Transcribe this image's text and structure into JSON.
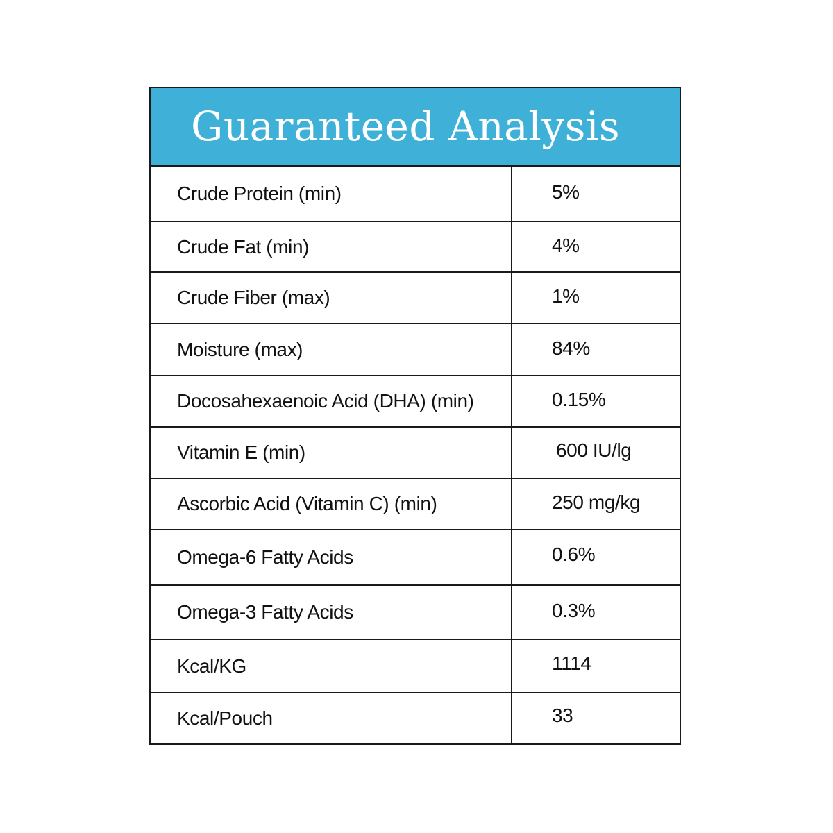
{
  "header": {
    "title": "Guaranteed Analysis",
    "background_color": "#3fb0d8",
    "text_color": "#ffffff"
  },
  "table": {
    "rows": [
      {
        "name": "Crude Protein (min)",
        "value": "5%"
      },
      {
        "name": "Crude Fat (min)",
        "value": "4%"
      },
      {
        "name": "Crude Fiber (max)",
        "value": "1%"
      },
      {
        "name": "Moisture (max)",
        "value": "84%"
      },
      {
        "name": "Docosahexaenoic Acid (DHA) (min)",
        "value": "0.15%"
      },
      {
        "name": "Vitamin E (min)",
        "value": "600 IU/lg"
      },
      {
        "name": "Ascorbic Acid (Vitamin C) (min)",
        "value": "250 mg/kg"
      },
      {
        "name": "Omega-6 Fatty Acids",
        "value": "0.6%"
      },
      {
        "name": "Omega-3 Fatty Acids",
        "value": "0.3%"
      },
      {
        "name": "Kcal/KG",
        "value": "1114"
      },
      {
        "name": "Kcal/Pouch",
        "value": "33"
      }
    ]
  }
}
